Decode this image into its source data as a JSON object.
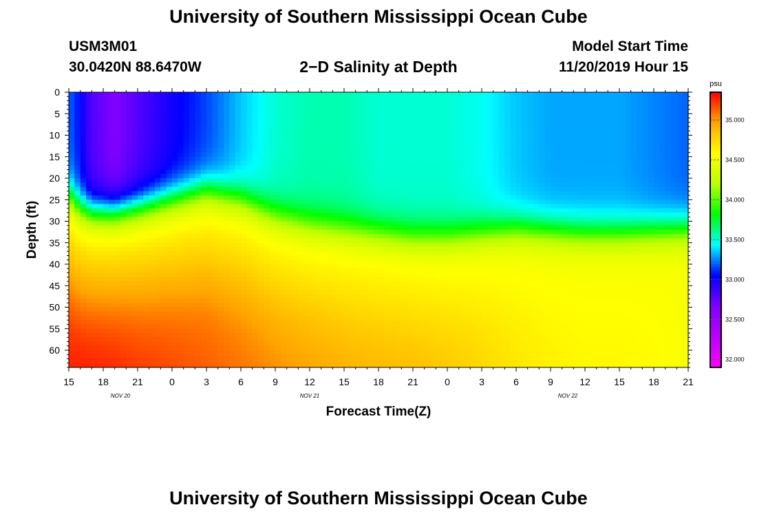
{
  "header": {
    "title": "University of Southern Mississippi Ocean Cube",
    "station_id": "USM3M01",
    "station_location": "30.0420N 88.6470W",
    "plot_title": "2−D Salinity at Depth",
    "model_start_label": "Model Start Time",
    "model_start_value": "11/20/2019 Hour 15"
  },
  "footer": {
    "title": "University of Southern Mississippi Ocean Cube"
  },
  "colors": {
    "scale": [
      "#ff00ff",
      "#bb00ff",
      "#8000ff",
      "#0000ff",
      "#00ffff",
      "#00ff00",
      "#bbff00",
      "#ffff00",
      "#ffa500",
      "#ff0000"
    ]
  },
  "chart_data": {
    "type": "heatmap",
    "title": "2−D Salinity at Depth",
    "xlabel": "Forecast Time(Z)",
    "ylabel": "Depth (ft)",
    "x_tick_labels": [
      "15",
      "18",
      "21",
      "0",
      "3",
      "6",
      "9",
      "12",
      "15",
      "18",
      "21",
      "0",
      "3",
      "6",
      "9",
      "12",
      "15",
      "18",
      "21"
    ],
    "date_labels": [
      {
        "text": "NOV  20",
        "tick_index": 1.5
      },
      {
        "text": "NOV  21",
        "tick_index": 7
      },
      {
        "text": "NOV  22",
        "tick_index": 14.5
      }
    ],
    "x_range_hours": [
      0,
      54
    ],
    "y_ticks": [
      0,
      5,
      10,
      15,
      20,
      25,
      30,
      35,
      40,
      45,
      50,
      55,
      60
    ],
    "ylim": [
      0,
      64
    ],
    "colorbar": {
      "unit": "psu",
      "range": [
        31.9,
        35.35
      ],
      "tick_values": [
        32.0,
        32.5,
        33.0,
        33.5,
        34.0,
        34.5,
        35.0
      ],
      "tick_labels": [
        "32.000",
        "32.500",
        "33.000",
        "33.500",
        "34.000",
        "34.500",
        "35.000"
      ]
    },
    "time_hours": [
      0,
      1,
      2,
      4,
      6,
      9,
      12,
      15,
      18,
      21,
      24,
      27,
      30,
      33,
      36,
      39,
      42,
      45,
      48,
      51,
      54
    ],
    "surface_salinity": [
      33.2,
      33.05,
      32.8,
      32.65,
      32.8,
      33.0,
      33.15,
      33.35,
      33.5,
      33.55,
      33.55,
      33.5,
      33.5,
      33.5,
      33.45,
      33.35,
      33.3,
      33.3,
      33.3,
      33.25,
      33.2
    ],
    "halocline_center_depth_ft": [
      24,
      27,
      28,
      28,
      27,
      25,
      23,
      25,
      29,
      31,
      32,
      33,
      34,
      34,
      33,
      32,
      32.5,
      33,
      33,
      32.5,
      32
    ],
    "bottom_salinity": [
      35.3,
      35.32,
      35.32,
      35.3,
      35.25,
      35.2,
      35.15,
      35.1,
      35.05,
      35.0,
      34.95,
      34.92,
      34.9,
      34.85,
      34.78,
      34.7,
      34.65,
      34.62,
      34.62,
      34.6,
      34.55
    ]
  }
}
